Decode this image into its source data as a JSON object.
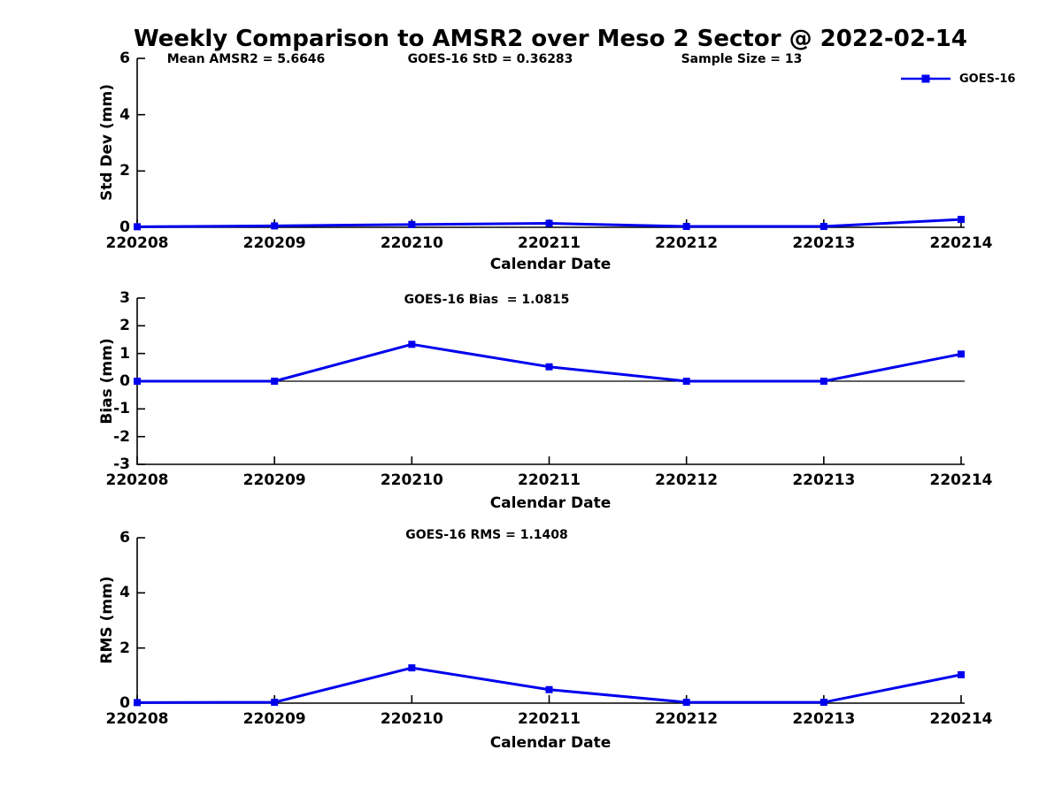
{
  "figure": {
    "title": "Weekly Comparison to AMSR2 over Meso 2 Sector @ 2022-02-14",
    "annotations": {
      "mean_amsr2": "Mean AMSR2 = 5.6646",
      "goes16_std": "GOES-16 StD = 0.36283",
      "sample_size": "Sample Size = 13"
    },
    "legend": {
      "label": "GOES-16",
      "marker": "filled-square"
    },
    "colors": {
      "line": "#0000EE",
      "axis": "#000000",
      "text": "#000000",
      "background": "#FFFFFF"
    }
  },
  "chart_data": [
    {
      "type": "line",
      "title": "",
      "ylabel": "Std Dev (mm)",
      "xlabel": "Calendar Date",
      "categories": [
        "220208",
        "220209",
        "220210",
        "220211",
        "220212",
        "220213",
        "220214"
      ],
      "series": [
        {
          "name": "GOES-16",
          "values": [
            0.02,
            0.05,
            0.1,
            0.14,
            0.03,
            0.03,
            0.28
          ]
        }
      ],
      "ylim": [
        0,
        6
      ],
      "yticks": [
        0,
        2,
        4,
        6
      ],
      "zero_line": false,
      "grid": false,
      "legend_position": "top-right",
      "stat_label": "GOES-16 StD = 0.36283"
    },
    {
      "type": "line",
      "title": "GOES-16 Bias  = 1.0815",
      "ylabel": "Bias (mm)",
      "xlabel": "Calendar Date",
      "categories": [
        "220208",
        "220209",
        "220210",
        "220211",
        "220212",
        "220213",
        "220214"
      ],
      "series": [
        {
          "name": "GOES-16",
          "values": [
            0.0,
            0.0,
            1.33,
            0.52,
            0.0,
            0.0,
            0.98
          ]
        }
      ],
      "ylim": [
        -3,
        3
      ],
      "yticks": [
        -3,
        -2,
        -1,
        0,
        1,
        2,
        3
      ],
      "zero_line": true,
      "grid": false,
      "stat_label": "GOES-16 Bias = 1.0815"
    },
    {
      "type": "line",
      "title": "GOES-16 RMS = 1.1408",
      "ylabel": "RMS (mm)",
      "xlabel": "Calendar Date",
      "categories": [
        "220208",
        "220209",
        "220210",
        "220211",
        "220212",
        "220213",
        "220214"
      ],
      "series": [
        {
          "name": "GOES-16",
          "values": [
            0.02,
            0.03,
            1.28,
            0.49,
            0.03,
            0.03,
            1.03
          ]
        }
      ],
      "ylim": [
        0,
        6
      ],
      "yticks": [
        0,
        2,
        4,
        6
      ],
      "zero_line": false,
      "grid": false,
      "stat_label": "GOES-16 RMS = 1.1408"
    }
  ]
}
